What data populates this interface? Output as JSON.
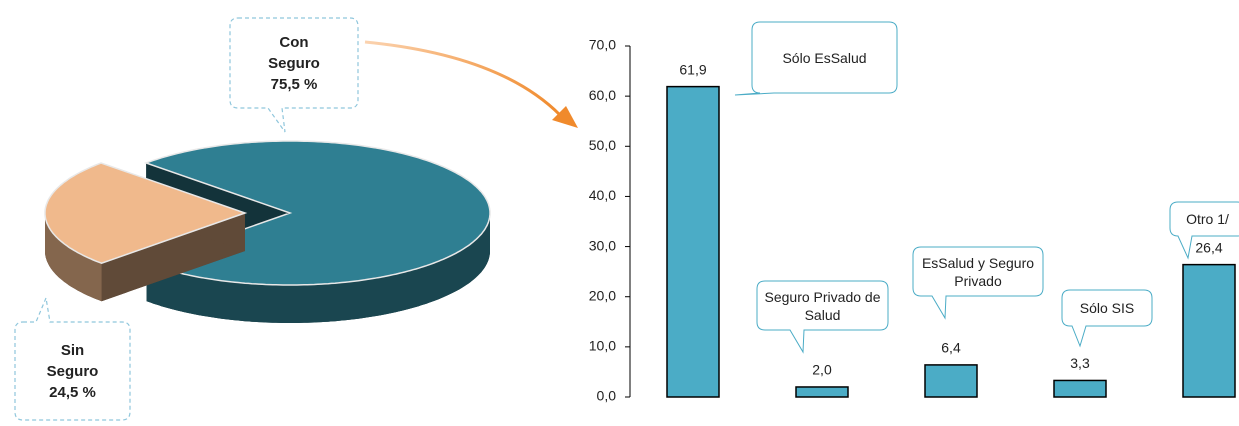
{
  "chart_data": [
    {
      "type": "pie",
      "categories": [
        "Con Seguro",
        "Sin Seguro"
      ],
      "values": [
        75.5,
        24.5
      ],
      "value_labels": [
        "75,5 %",
        "24,5 %"
      ],
      "colors": [
        "#2f7f92",
        "#f0b98c"
      ]
    },
    {
      "type": "bar",
      "categories": [
        "Sólo EsSalud",
        "Seguro Privado de Salud",
        "EsSalud y Seguro Privado",
        "Sólo SIS",
        "Otro 1/"
      ],
      "values": [
        61.9,
        2.0,
        6.4,
        3.3,
        26.4
      ],
      "value_labels": [
        "61,9",
        "2,0",
        "6,4",
        "3,3",
        "26,4"
      ],
      "color": "#4bacc6",
      "ylim": [
        0,
        70
      ],
      "yticks": [
        {
          "value": 0,
          "label": "0,0"
        },
        {
          "value": 10,
          "label": "10,0"
        },
        {
          "value": 20,
          "label": "20,0"
        },
        {
          "value": 30,
          "label": "30,0"
        },
        {
          "value": 40,
          "label": "40,0"
        },
        {
          "value": 50,
          "label": "50,0"
        },
        {
          "value": 60,
          "label": "60,0"
        },
        {
          "value": 70,
          "label": "70,0"
        }
      ]
    }
  ]
}
